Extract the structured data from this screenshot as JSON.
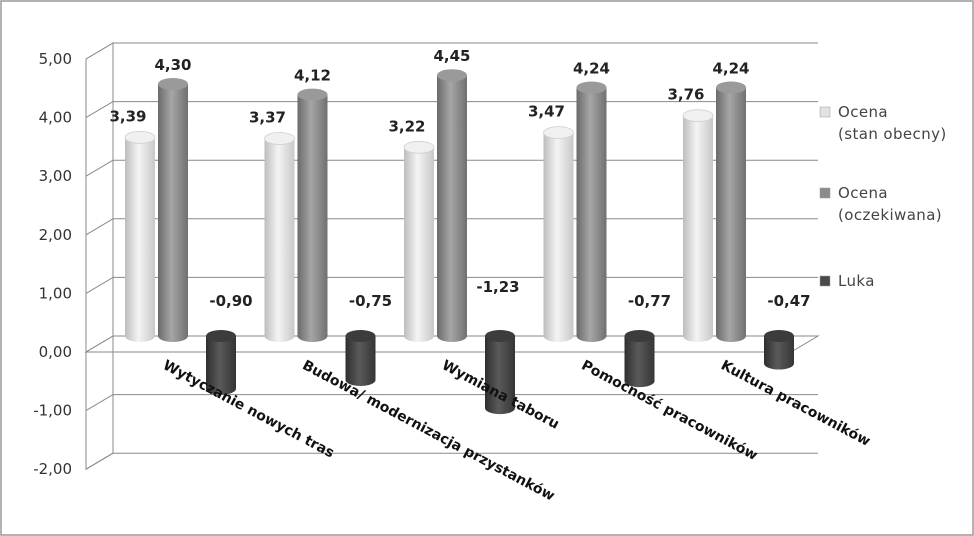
{
  "chart_data": {
    "type": "bar",
    "categories": [
      "Wytyczanie nowych tras",
      "Budowa/ modernizacja przystanków",
      "Wymiana taboru",
      "Pomocność pracowników",
      "Kultura pracowników"
    ],
    "series": [
      {
        "name": "Ocena (stan obecny)",
        "legend_lines": [
          "Ocena",
          "(stan obecny)"
        ],
        "color": "#e2e2e2",
        "values": [
          3.39,
          3.37,
          3.22,
          3.47,
          3.76
        ],
        "labels": [
          "3,39",
          "3,37",
          "3,22",
          "3,47",
          "3,76"
        ]
      },
      {
        "name": "Ocena (oczekiwana)",
        "legend_lines": [
          "Ocena",
          "(oczekiwana)"
        ],
        "color": "#8c8c8c",
        "values": [
          4.3,
          4.12,
          4.45,
          4.24,
          4.24
        ],
        "labels": [
          "4,30",
          "4,12",
          "4,45",
          "4,24",
          "4,24"
        ]
      },
      {
        "name": "Luka",
        "legend_lines": [
          "Luka"
        ],
        "color": "#4a4a4a",
        "values": [
          -0.9,
          -0.75,
          -1.23,
          -0.77,
          -0.47
        ],
        "labels": [
          "-0,90",
          "-0,75",
          "-1,23",
          "-0,77",
          "-0,47"
        ]
      }
    ],
    "ylim": [
      -2,
      5
    ],
    "yticks": [
      5,
      4,
      3,
      2,
      1,
      0,
      -1,
      -2
    ],
    "ytick_labels": [
      "5,00",
      "4,00",
      "3,00",
      "2,00",
      "1,00",
      "0,00",
      "-1,00",
      "-2,00"
    ],
    "grid": true,
    "legend_position": "right",
    "style": "3d-cylinder"
  }
}
